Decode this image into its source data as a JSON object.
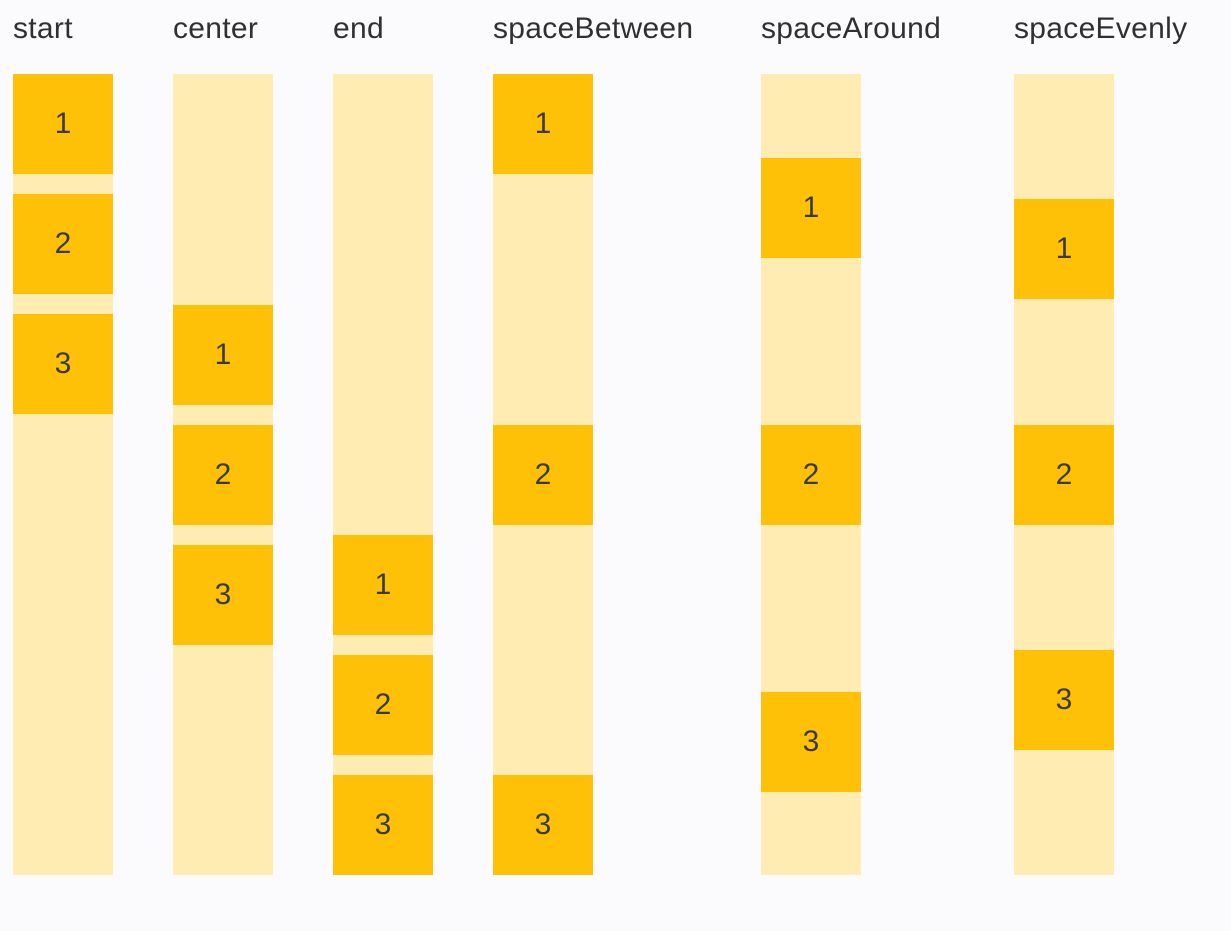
{
  "demo": {
    "description": "column main-axis alignment demo",
    "columns": [
      {
        "label": "start",
        "justify": "start",
        "boxes": [
          "1",
          "2",
          "3"
        ]
      },
      {
        "label": "center",
        "justify": "center",
        "boxes": [
          "1",
          "2",
          "3"
        ]
      },
      {
        "label": "end",
        "justify": "end",
        "boxes": [
          "1",
          "2",
          "3"
        ]
      },
      {
        "label": "spaceBetween",
        "justify": "space-between",
        "boxes": [
          "1",
          "2",
          "3"
        ]
      },
      {
        "label": "spaceAround",
        "justify": "space-around",
        "boxes": [
          "1",
          "2",
          "3"
        ]
      },
      {
        "label": "spaceEvenly",
        "justify": "space-evenly",
        "boxes": [
          "1",
          "2",
          "3"
        ]
      }
    ]
  },
  "colors": {
    "box": "#FFC107",
    "track": "#FFECB3",
    "background": "#FBFBFE",
    "label_text": "#303030",
    "box_text": "#3A3A3A"
  }
}
